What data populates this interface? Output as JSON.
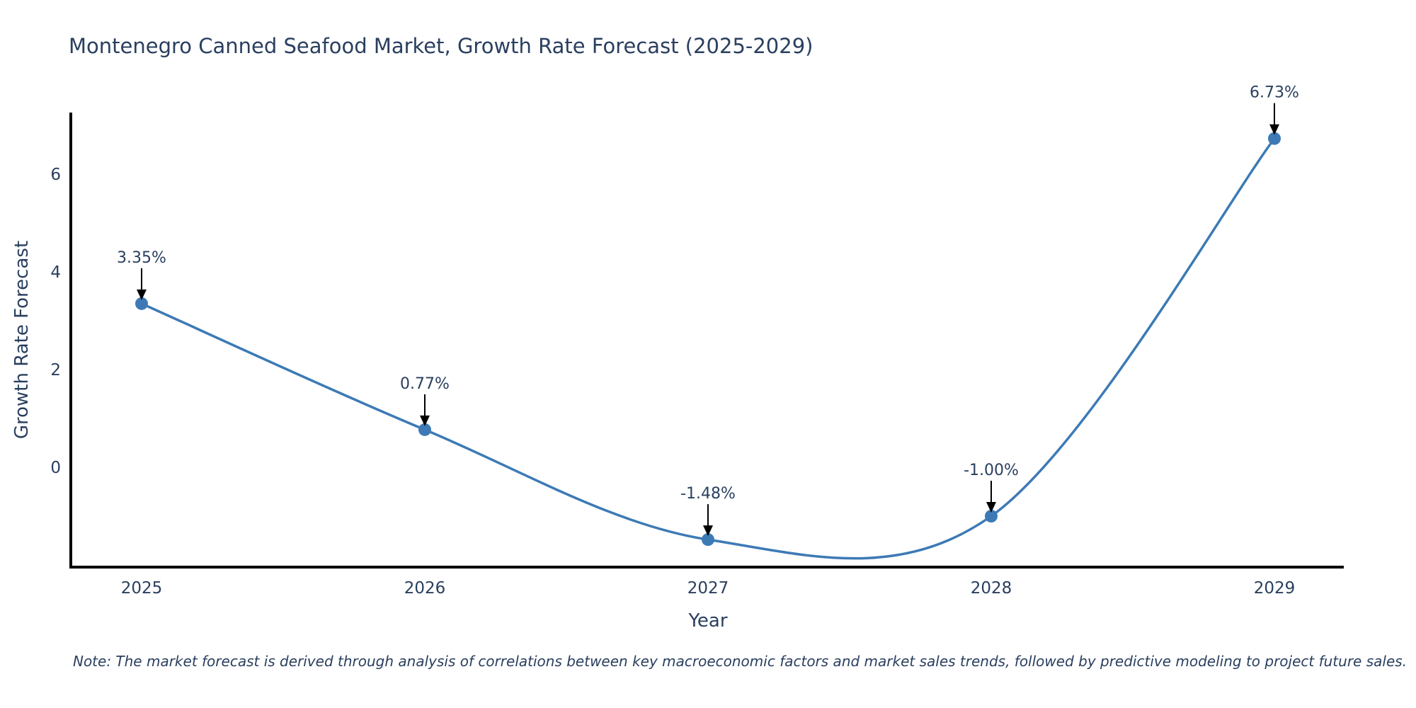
{
  "chart_data": {
    "type": "line",
    "title": "Montenegro Canned Seafood Market, Growth Rate Forecast (2025-2029)",
    "xlabel": "Year",
    "ylabel": "Growth Rate Forecast",
    "x": [
      "2025",
      "2026",
      "2027",
      "2028",
      "2029"
    ],
    "values": [
      3.35,
      0.77,
      -1.48,
      -1.0,
      6.73
    ],
    "point_labels": [
      "3.35%",
      "0.77%",
      "-1.48%",
      "-1.00%",
      "6.73%"
    ],
    "yticks": [
      0,
      2,
      4,
      6
    ],
    "ylim": [
      -2.05,
      7.3
    ],
    "line_shape": "spline",
    "grid": false,
    "legend_position": "none",
    "colors": {
      "line": "#3d7ab5",
      "marker": "#3d7ab5",
      "axis_spine": "#000000",
      "text": "#2a3f5f",
      "annotation_arrow": "#000000",
      "background": "#ffffff"
    }
  },
  "note": "Note: The market forecast is derived through analysis of correlations between key macroeconomic factors and market sales trends, followed by predictive modeling to project future sales."
}
